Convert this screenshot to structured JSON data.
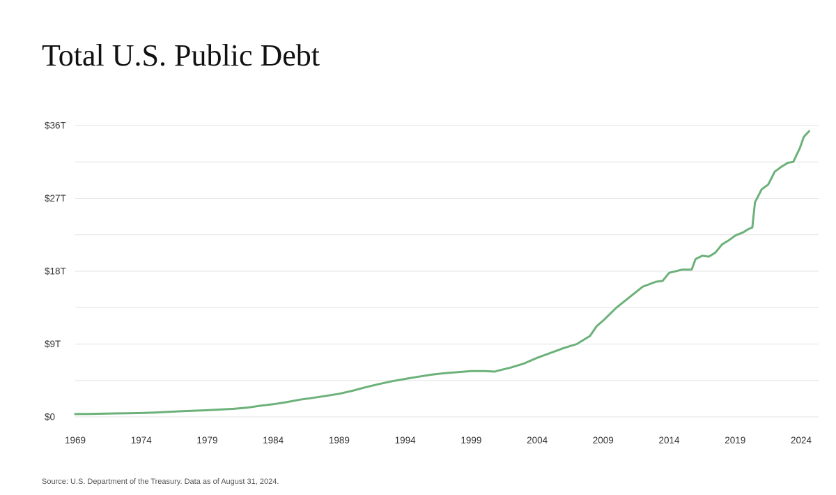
{
  "colors": {
    "line": "#6cb17a",
    "grid": "#e3e3e3",
    "text": "#333333"
  },
  "chart_data": {
    "type": "line",
    "title": "Total U.S. Public Debt",
    "source": "Source: U.S. Department of the Treasury. Data as of August 31, 2024.",
    "xlabel": "",
    "ylabel": "",
    "xlim": [
      1969,
      2024.6
    ],
    "ylim": [
      0,
      36
    ],
    "grid": true,
    "minor_gridlines": true,
    "legend": "none",
    "x_ticks": [
      1969,
      1974,
      1979,
      1984,
      1989,
      1994,
      1999,
      2004,
      2009,
      2014,
      2019,
      2024
    ],
    "x_tick_labels": [
      "1969",
      "1974",
      "1979",
      "1984",
      "1989",
      "1994",
      "1999",
      "2004",
      "2009",
      "2014",
      "2019",
      "2024"
    ],
    "y_ticks": [
      0,
      9,
      18,
      27,
      36
    ],
    "y_tick_labels": [
      "$0",
      "$9T",
      "$18T",
      "$27T",
      "$36T"
    ],
    "series": [
      {
        "values": [
          [
            1969,
            0.35
          ],
          [
            1970,
            0.37
          ],
          [
            1971,
            0.4
          ],
          [
            1972,
            0.43
          ],
          [
            1973,
            0.46
          ],
          [
            1974,
            0.48
          ],
          [
            1975,
            0.54
          ],
          [
            1976,
            0.62
          ],
          [
            1977,
            0.7
          ],
          [
            1978,
            0.77
          ],
          [
            1979,
            0.83
          ],
          [
            1980,
            0.91
          ],
          [
            1981,
            1.0
          ],
          [
            1982,
            1.14
          ],
          [
            1983,
            1.38
          ],
          [
            1984,
            1.57
          ],
          [
            1985,
            1.82
          ],
          [
            1986,
            2.13
          ],
          [
            1987,
            2.35
          ],
          [
            1988,
            2.6
          ],
          [
            1989,
            2.86
          ],
          [
            1990,
            3.23
          ],
          [
            1991,
            3.67
          ],
          [
            1992,
            4.06
          ],
          [
            1993,
            4.41
          ],
          [
            1994,
            4.69
          ],
          [
            1995,
            4.97
          ],
          [
            1996,
            5.22
          ],
          [
            1997,
            5.41
          ],
          [
            1998,
            5.53
          ],
          [
            1999,
            5.66
          ],
          [
            2000,
            5.67
          ],
          [
            2000.8,
            5.6
          ],
          [
            2001,
            5.7
          ],
          [
            2002,
            6.1
          ],
          [
            2003,
            6.6
          ],
          [
            2004,
            7.3
          ],
          [
            2005,
            7.9
          ],
          [
            2006,
            8.5
          ],
          [
            2007,
            9.0
          ],
          [
            2008,
            10.0
          ],
          [
            2008.5,
            11.2
          ],
          [
            2009,
            11.9
          ],
          [
            2010,
            13.5
          ],
          [
            2011,
            14.8
          ],
          [
            2012,
            16.1
          ],
          [
            2013,
            16.7
          ],
          [
            2013.5,
            16.8
          ],
          [
            2014,
            17.8
          ],
          [
            2015,
            18.2
          ],
          [
            2015.7,
            18.2
          ],
          [
            2016,
            19.5
          ],
          [
            2016.5,
            19.9
          ],
          [
            2017,
            19.8
          ],
          [
            2017.5,
            20.3
          ],
          [
            2018,
            21.3
          ],
          [
            2018.5,
            21.8
          ],
          [
            2019,
            22.4
          ],
          [
            2019.6,
            22.8
          ],
          [
            2020,
            23.2
          ],
          [
            2020.3,
            23.4
          ],
          [
            2020.5,
            26.5
          ],
          [
            2021,
            28.1
          ],
          [
            2021.5,
            28.7
          ],
          [
            2022,
            30.3
          ],
          [
            2022.5,
            30.9
          ],
          [
            2023,
            31.4
          ],
          [
            2023.4,
            31.5
          ],
          [
            2023.9,
            33.2
          ],
          [
            2024.2,
            34.6
          ],
          [
            2024.6,
            35.3
          ]
        ]
      }
    ]
  }
}
